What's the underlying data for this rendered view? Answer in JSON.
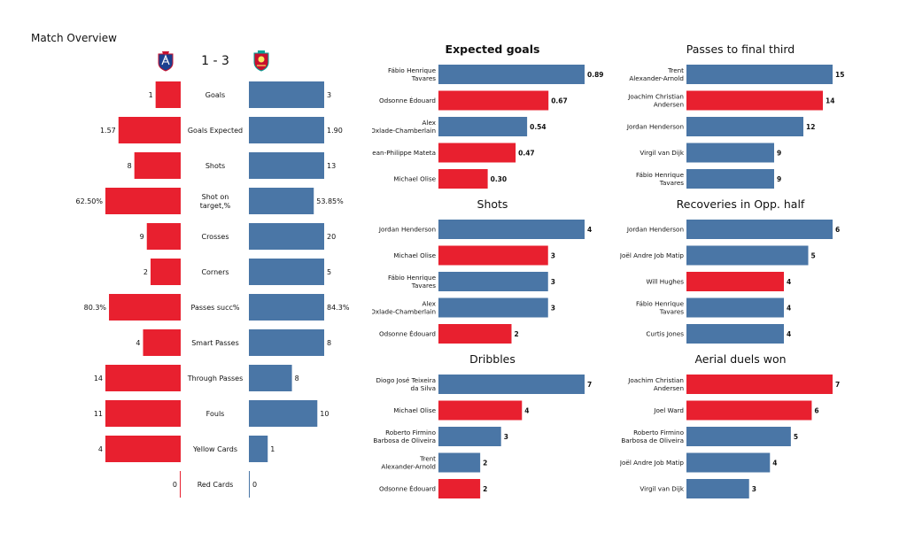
{
  "page": {
    "title": "Match Overview"
  },
  "colors": {
    "home": "#e8202f",
    "away": "#4a76a6"
  },
  "overview": {
    "score": "1 - 3",
    "home_crest_icon": "crystal-palace-crest-icon",
    "away_crest_icon": "liverpool-crest-icon",
    "stats": [
      {
        "label": "Goals",
        "home": 1,
        "away": 3,
        "home_text": "1",
        "away_text": "3"
      },
      {
        "label": "Goals Expected",
        "home": 1.57,
        "away": 1.9,
        "home_text": "1.57",
        "away_text": "1.90"
      },
      {
        "label": "Shots",
        "home": 8,
        "away": 13,
        "home_text": "8",
        "away_text": "13"
      },
      {
        "label": "Shot on target,%",
        "home": 62.5,
        "away": 53.85,
        "home_text": "62.50%",
        "away_text": "53.85%"
      },
      {
        "label": "Crosses",
        "home": 9,
        "away": 20,
        "home_text": "9",
        "away_text": "20"
      },
      {
        "label": "Corners",
        "home": 2,
        "away": 5,
        "home_text": "2",
        "away_text": "5"
      },
      {
        "label": "Passes succ%",
        "home": 80.3,
        "away": 84.3,
        "home_text": "80.3%",
        "away_text": "84.3%"
      },
      {
        "label": "Smart Passes",
        "home": 4,
        "away": 8,
        "home_text": "4",
        "away_text": "8"
      },
      {
        "label": "Through Passes",
        "home": 14,
        "away": 8,
        "home_text": "14",
        "away_text": "8"
      },
      {
        "label": "Fouls",
        "home": 11,
        "away": 10,
        "home_text": "11",
        "away_text": "10"
      },
      {
        "label": "Yellow Cards",
        "home": 4,
        "away": 1,
        "home_text": "4",
        "away_text": "1"
      },
      {
        "label": "Red Cards",
        "home": 0,
        "away": 0,
        "home_text": "0",
        "away_text": "0"
      }
    ]
  },
  "chart_data": [
    {
      "type": "bar",
      "orientation": "horizontal",
      "title": "Expected goals",
      "categories": [
        "Fábio Henrique Tavares",
        "Odsonne Édouard",
        "Alex Oxlade-Chamberlain",
        "Jean-Philippe Mateta",
        "Michael Olise"
      ],
      "values": [
        0.89,
        0.67,
        0.54,
        0.47,
        0.3
      ],
      "value_labels": [
        "0.89",
        "0.67",
        "0.54",
        "0.47",
        "0.30"
      ],
      "teams": [
        "away",
        "home",
        "away",
        "home",
        "home"
      ]
    },
    {
      "type": "bar",
      "orientation": "horizontal",
      "title": "Passes to final third",
      "categories": [
        "Trent Alexander-Arnold",
        "Joachim Christian Andersen",
        "Jordan Henderson",
        "Virgil van Dijk",
        "Fábio Henrique Tavares"
      ],
      "values": [
        15,
        14,
        12,
        9,
        9
      ],
      "value_labels": [
        "15",
        "14",
        "12",
        "9",
        "9"
      ],
      "teams": [
        "away",
        "home",
        "away",
        "away",
        "away"
      ]
    },
    {
      "type": "bar",
      "orientation": "horizontal",
      "title": "Shots",
      "categories": [
        "Jordan Henderson",
        "Michael Olise",
        "Fábio Henrique Tavares",
        "Alex Oxlade-Chamberlain",
        "Odsonne Édouard"
      ],
      "values": [
        4,
        3,
        3,
        3,
        2
      ],
      "value_labels": [
        "4",
        "3",
        "3",
        "3",
        "2"
      ],
      "teams": [
        "away",
        "home",
        "away",
        "away",
        "home"
      ]
    },
    {
      "type": "bar",
      "orientation": "horizontal",
      "title": "Recoveries in Opp. half",
      "categories": [
        "Jordan Henderson",
        "Joël Andre Job Matip",
        "Will Hughes",
        "Fábio Henrique Tavares",
        "Curtis Jones"
      ],
      "values": [
        6,
        5,
        4,
        4,
        4
      ],
      "value_labels": [
        "6",
        "5",
        "4",
        "4",
        "4"
      ],
      "teams": [
        "away",
        "away",
        "home",
        "away",
        "away"
      ]
    },
    {
      "type": "bar",
      "orientation": "horizontal",
      "title": "Dribbles",
      "categories": [
        "Diogo José Teixeira da Silva",
        "Michael Olise",
        "Roberto Firmino Barbosa de Oliveira",
        "Trent Alexander-Arnold",
        "Odsonne Édouard"
      ],
      "values": [
        7,
        4,
        3,
        2,
        2
      ],
      "value_labels": [
        "7",
        "4",
        "3",
        "2",
        "2"
      ],
      "teams": [
        "away",
        "home",
        "away",
        "away",
        "home"
      ]
    },
    {
      "type": "bar",
      "orientation": "horizontal",
      "title": "Aerial duels won",
      "categories": [
        "Joachim Christian Andersen",
        "Joel Ward",
        "Roberto Firmino Barbosa de Oliveira",
        "Joël Andre Job Matip",
        "Virgil van Dijk"
      ],
      "values": [
        7,
        6,
        5,
        4,
        3
      ],
      "value_labels": [
        "7",
        "6",
        "5",
        "4",
        "3"
      ],
      "teams": [
        "home",
        "home",
        "away",
        "away",
        "away"
      ]
    }
  ]
}
